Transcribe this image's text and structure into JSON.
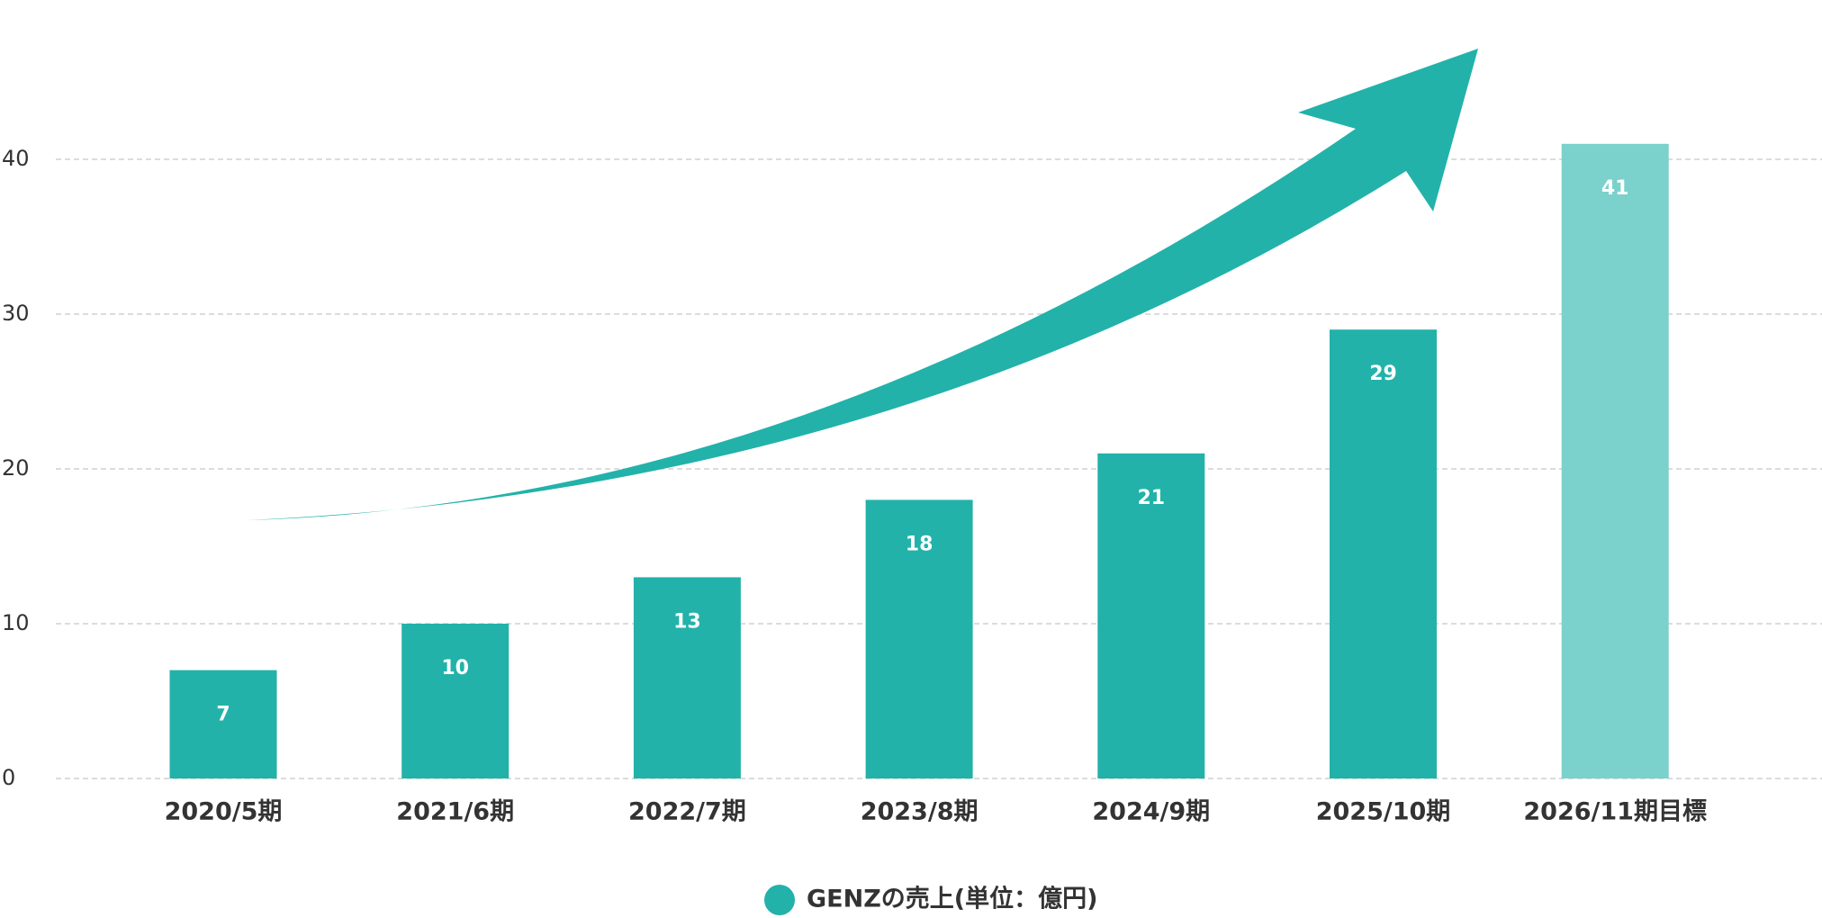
{
  "chart_data": {
    "type": "bar",
    "categories": [
      "2020/5期",
      "2021/6期",
      "2022/7期",
      "2023/8期",
      "2024/9期",
      "2025/10期",
      "2026/11期目標"
    ],
    "series": [
      {
        "name": "GENZの売上(単位：億円)",
        "color": "#22b2aa",
        "colors": [
          "#22b2aa",
          "#22b2aa",
          "#22b2aa",
          "#22b2aa",
          "#22b2aa",
          "#22b2aa",
          "#7bd1cc"
        ],
        "values": [
          7,
          10,
          13,
          18,
          21,
          29,
          41
        ]
      }
    ],
    "ylim": [
      0,
      40
    ],
    "yticks": [
      0,
      10,
      20,
      30,
      40
    ],
    "grid": true,
    "legend": "bottom"
  }
}
